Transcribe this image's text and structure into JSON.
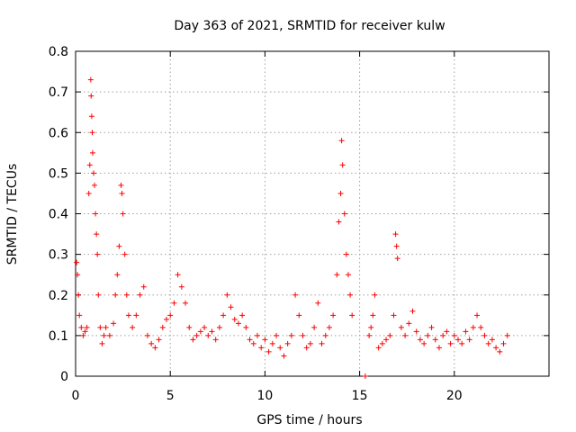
{
  "chart_data": {
    "type": "scatter",
    "title": "Day 363 of 2021, SRMTID for receiver kulw",
    "xlabel": "GPS time / hours",
    "ylabel": "SRMTID / TECUs",
    "xlim": [
      0,
      25
    ],
    "ylim": [
      0,
      0.8
    ],
    "xticks": [
      0,
      5,
      10,
      15,
      20
    ],
    "xtick_labels": [
      "0",
      "5",
      "10",
      "15",
      "20"
    ],
    "yticks": [
      0,
      0.1,
      0.2,
      0.3,
      0.4,
      0.5,
      0.6,
      0.7,
      0.8
    ],
    "ytick_labels": [
      "0",
      "0.1",
      "0.2",
      "0.3",
      "0.4",
      "0.5",
      "0.6",
      "0.7",
      "0.8"
    ],
    "grid": true,
    "marker": "plus",
    "color": "#ff0000",
    "series": [
      {
        "name": "SRMTID",
        "points": [
          [
            0.05,
            0.28
          ],
          [
            0.1,
            0.25
          ],
          [
            0.15,
            0.2
          ],
          [
            0.2,
            0.15
          ],
          [
            0.3,
            0.12
          ],
          [
            0.4,
            0.1
          ],
          [
            0.5,
            0.11
          ],
          [
            0.6,
            0.12
          ],
          [
            0.7,
            0.45
          ],
          [
            0.75,
            0.52
          ],
          [
            0.8,
            0.73
          ],
          [
            0.82,
            0.69
          ],
          [
            0.85,
            0.64
          ],
          [
            0.88,
            0.6
          ],
          [
            0.9,
            0.55
          ],
          [
            0.95,
            0.5
          ],
          [
            1.0,
            0.47
          ],
          [
            1.05,
            0.4
          ],
          [
            1.1,
            0.35
          ],
          [
            1.15,
            0.3
          ],
          [
            1.2,
            0.2
          ],
          [
            1.3,
            0.12
          ],
          [
            1.4,
            0.08
          ],
          [
            1.5,
            0.1
          ],
          [
            1.6,
            0.12
          ],
          [
            1.8,
            0.1
          ],
          [
            2.0,
            0.13
          ],
          [
            2.1,
            0.2
          ],
          [
            2.2,
            0.25
          ],
          [
            2.3,
            0.32
          ],
          [
            2.4,
            0.47
          ],
          [
            2.45,
            0.45
          ],
          [
            2.5,
            0.4
          ],
          [
            2.6,
            0.3
          ],
          [
            2.7,
            0.2
          ],
          [
            2.8,
            0.15
          ],
          [
            3.0,
            0.12
          ],
          [
            3.2,
            0.15
          ],
          [
            3.4,
            0.2
          ],
          [
            3.6,
            0.22
          ],
          [
            3.8,
            0.1
          ],
          [
            4.0,
            0.08
          ],
          [
            4.2,
            0.07
          ],
          [
            4.4,
            0.09
          ],
          [
            4.6,
            0.12
          ],
          [
            4.8,
            0.14
          ],
          [
            5.0,
            0.15
          ],
          [
            5.2,
            0.18
          ],
          [
            5.4,
            0.25
          ],
          [
            5.6,
            0.22
          ],
          [
            5.8,
            0.18
          ],
          [
            6.0,
            0.12
          ],
          [
            6.2,
            0.09
          ],
          [
            6.4,
            0.1
          ],
          [
            6.6,
            0.11
          ],
          [
            6.8,
            0.12
          ],
          [
            7.0,
            0.1
          ],
          [
            7.2,
            0.11
          ],
          [
            7.4,
            0.09
          ],
          [
            7.6,
            0.12
          ],
          [
            7.8,
            0.15
          ],
          [
            8.0,
            0.2
          ],
          [
            8.2,
            0.17
          ],
          [
            8.4,
            0.14
          ],
          [
            8.6,
            0.13
          ],
          [
            8.8,
            0.15
          ],
          [
            9.0,
            0.12
          ],
          [
            9.2,
            0.09
          ],
          [
            9.4,
            0.08
          ],
          [
            9.6,
            0.1
          ],
          [
            9.8,
            0.07
          ],
          [
            10.0,
            0.09
          ],
          [
            10.2,
            0.06
          ],
          [
            10.4,
            0.08
          ],
          [
            10.6,
            0.1
          ],
          [
            10.8,
            0.07
          ],
          [
            11.0,
            0.05
          ],
          [
            11.2,
            0.08
          ],
          [
            11.4,
            0.1
          ],
          [
            11.6,
            0.2
          ],
          [
            11.8,
            0.15
          ],
          [
            12.0,
            0.1
          ],
          [
            12.2,
            0.07
          ],
          [
            12.4,
            0.08
          ],
          [
            12.6,
            0.12
          ],
          [
            12.8,
            0.18
          ],
          [
            13.0,
            0.08
          ],
          [
            13.2,
            0.1
          ],
          [
            13.4,
            0.12
          ],
          [
            13.6,
            0.15
          ],
          [
            13.8,
            0.25
          ],
          [
            13.9,
            0.38
          ],
          [
            14.0,
            0.45
          ],
          [
            14.05,
            0.58
          ],
          [
            14.1,
            0.52
          ],
          [
            14.2,
            0.4
          ],
          [
            14.3,
            0.3
          ],
          [
            14.4,
            0.25
          ],
          [
            14.5,
            0.2
          ],
          [
            14.6,
            0.15
          ],
          [
            15.3,
            0.0
          ],
          [
            15.5,
            0.1
          ],
          [
            15.6,
            0.12
          ],
          [
            15.7,
            0.15
          ],
          [
            15.8,
            0.2
          ],
          [
            16.0,
            0.07
          ],
          [
            16.2,
            0.08
          ],
          [
            16.4,
            0.09
          ],
          [
            16.6,
            0.1
          ],
          [
            16.8,
            0.15
          ],
          [
            16.9,
            0.35
          ],
          [
            16.95,
            0.32
          ],
          [
            17.0,
            0.29
          ],
          [
            17.2,
            0.12
          ],
          [
            17.4,
            0.1
          ],
          [
            17.6,
            0.13
          ],
          [
            17.8,
            0.16
          ],
          [
            18.0,
            0.11
          ],
          [
            18.2,
            0.09
          ],
          [
            18.4,
            0.08
          ],
          [
            18.6,
            0.1
          ],
          [
            18.8,
            0.12
          ],
          [
            19.0,
            0.09
          ],
          [
            19.2,
            0.07
          ],
          [
            19.4,
            0.1
          ],
          [
            19.6,
            0.11
          ],
          [
            19.8,
            0.08
          ],
          [
            20.0,
            0.1
          ],
          [
            20.2,
            0.09
          ],
          [
            20.4,
            0.08
          ],
          [
            20.6,
            0.11
          ],
          [
            20.8,
            0.09
          ],
          [
            21.0,
            0.12
          ],
          [
            21.2,
            0.15
          ],
          [
            21.4,
            0.12
          ],
          [
            21.6,
            0.1
          ],
          [
            21.8,
            0.08
          ],
          [
            22.0,
            0.09
          ],
          [
            22.2,
            0.07
          ],
          [
            22.4,
            0.06
          ],
          [
            22.6,
            0.08
          ],
          [
            22.8,
            0.1
          ]
        ]
      }
    ]
  }
}
